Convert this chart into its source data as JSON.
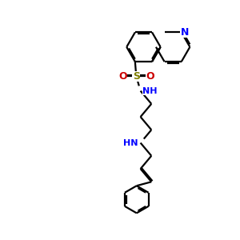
{
  "background_color": "#ffffff",
  "figsize": [
    3.0,
    3.0
  ],
  "dpi": 100,
  "bond_color": "#000000",
  "N_color": "#0000ff",
  "O_color": "#cc0000",
  "S_color": "#808000",
  "lw": 1.6,
  "dbo": 0.055,
  "xlim": [
    0,
    10
  ],
  "ylim": [
    0,
    10
  ]
}
